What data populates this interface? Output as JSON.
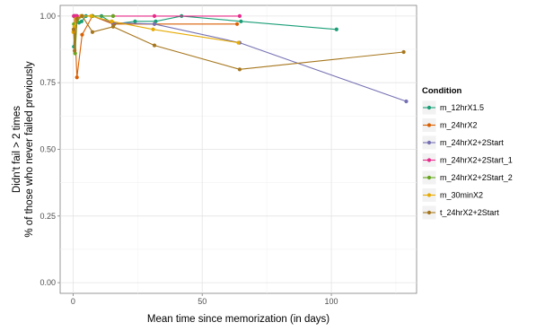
{
  "chart_data": {
    "type": "line",
    "xlabel": "Mean time since memorization (in days)",
    "ylabel_lines": [
      "Didn't fail > 2 times",
      "% of those who never failed previously"
    ],
    "xlim": [
      -5,
      133
    ],
    "ylim": [
      -0.04,
      1.04
    ],
    "x_ticks": [
      0,
      50,
      100
    ],
    "x_tick_labels": [
      "0",
      "50",
      "100"
    ],
    "y_ticks": [
      0,
      0.25,
      0.5,
      0.75,
      1
    ],
    "y_tick_labels": [
      "0.00",
      "0.25",
      "0.50",
      "0.75",
      "1.00"
    ],
    "grid": true,
    "legend": {
      "title": "Condition",
      "position": "right"
    },
    "series": [
      {
        "name": "m_12hrX1.5",
        "color": "#1b9e77",
        "x": [
          0.3,
          0.7,
          1.1,
          1.6,
          2.3,
          3.3,
          5,
          7.5,
          11,
          16,
          24,
          32,
          42,
          65,
          102
        ],
        "y": [
          0.885,
          0.96,
          1.0,
          0.98,
          0.975,
          0.98,
          1.0,
          1.0,
          1.0,
          0.97,
          0.98,
          0.98,
          1.0,
          0.98,
          0.95
        ]
      },
      {
        "name": "m_24hrX2",
        "color": "#d95f02",
        "x": [
          0.5,
          1.5,
          3.5,
          7.5,
          15.5,
          31.5,
          63.5
        ],
        "y": [
          1.0,
          0.77,
          0.93,
          1.0,
          0.97,
          0.97,
          0.97
        ]
      },
      {
        "name": "m_24hrX2+2Start",
        "color": "#7570b3",
        "x": [
          0.3,
          0.8,
          1.5,
          3.5,
          7.5,
          15.5,
          31.5,
          64.5,
          129
        ],
        "y": [
          1.0,
          1.0,
          1.0,
          1.0,
          1.0,
          0.975,
          0.97,
          0.9,
          0.68
        ]
      },
      {
        "name": "m_24hrX2+2Start_1",
        "color": "#e7298a",
        "x": [
          0.3,
          0.8,
          1.5,
          3.5,
          7.5,
          15.5,
          31.5,
          64.5
        ],
        "y": [
          1.0,
          1.0,
          1.0,
          1.0,
          1.0,
          1.0,
          1.0,
          1.0
        ]
      },
      {
        "name": "m_24hrX2+2Start_2",
        "color": "#66a61e",
        "x": [
          0.3,
          0.8,
          1.5,
          3.5,
          7.5,
          15.5
        ],
        "y": [
          0.97,
          0.86,
          0.98,
          1.0,
          1.0,
          1.0
        ]
      },
      {
        "name": "m_30minX2",
        "color": "#e6ab02",
        "x": [
          0.1,
          0.5,
          1.2,
          3,
          7,
          15,
          31,
          64
        ],
        "y": [
          0.94,
          0.96,
          0.99,
          1.0,
          1.0,
          0.98,
          0.95,
          0.9
        ]
      },
      {
        "name": "t_24hrX2+2Start",
        "color": "#a6761d",
        "x": [
          0.2,
          0.6,
          1.5,
          3.5,
          7.5,
          15.5,
          31.5,
          64.5,
          128
        ],
        "y": [
          0.95,
          0.87,
          0.99,
          1.0,
          0.94,
          0.96,
          0.89,
          0.8,
          0.865
        ]
      }
    ]
  }
}
